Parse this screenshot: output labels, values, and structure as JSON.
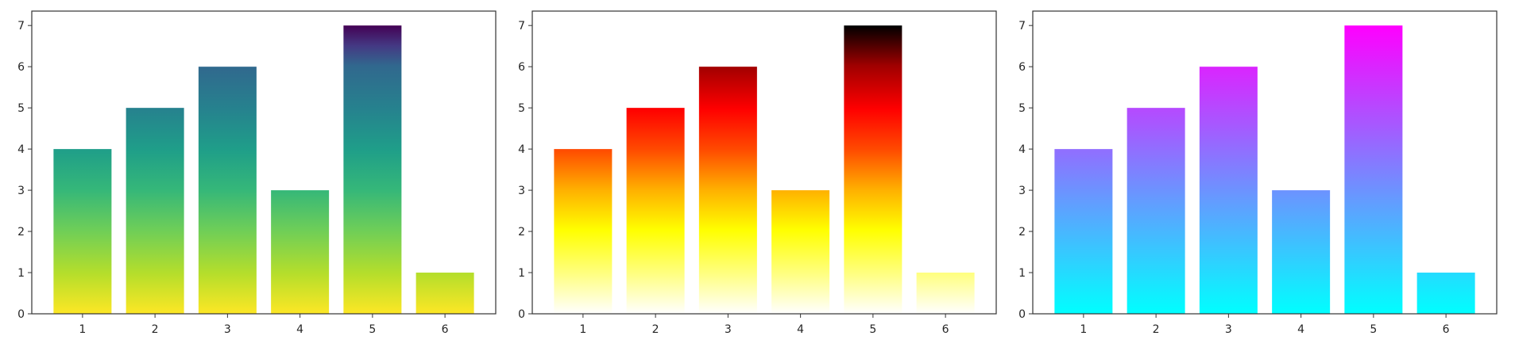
{
  "chart_data": [
    {
      "type": "bar",
      "colormap": "viridis (reversed, vertical gradient)",
      "categories": [
        "1",
        "2",
        "3",
        "4",
        "5",
        "6"
      ],
      "values": [
        4,
        5,
        6,
        3,
        7,
        1
      ],
      "yticks": [
        "0",
        "1",
        "2",
        "3",
        "4",
        "5",
        "6",
        "7"
      ],
      "ylim": [
        0,
        7.35
      ],
      "title": "",
      "xlabel": "",
      "ylabel": "",
      "grid": false,
      "legend": "none"
    },
    {
      "type": "bar",
      "colormap": "hot (reversed, vertical gradient)",
      "categories": [
        "1",
        "2",
        "3",
        "4",
        "5",
        "6"
      ],
      "values": [
        4,
        5,
        6,
        3,
        7,
        1
      ],
      "yticks": [
        "0",
        "1",
        "2",
        "3",
        "4",
        "5",
        "6",
        "7"
      ],
      "ylim": [
        0,
        7.35
      ],
      "title": "",
      "xlabel": "",
      "ylabel": "",
      "grid": false,
      "legend": "none"
    },
    {
      "type": "bar",
      "colormap": "cool (vertical gradient)",
      "categories": [
        "1",
        "2",
        "3",
        "4",
        "5",
        "6"
      ],
      "values": [
        4,
        5,
        6,
        3,
        7,
        1
      ],
      "yticks": [
        "0",
        "1",
        "2",
        "3",
        "4",
        "5",
        "6",
        "7"
      ],
      "ylim": [
        0,
        7.35
      ],
      "title": "",
      "xlabel": "",
      "ylabel": "",
      "grid": false,
      "legend": "none"
    }
  ]
}
